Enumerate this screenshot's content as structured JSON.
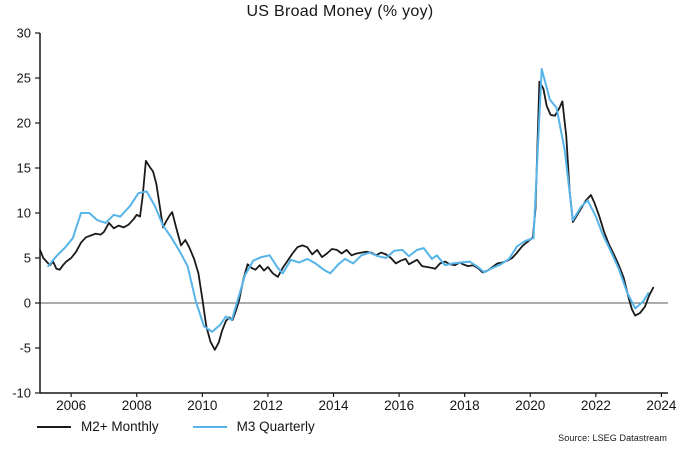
{
  "title": "US Broad Money (% yoy)",
  "source": "Source: LSEG Datastream",
  "legend": [
    {
      "label": "M2+ Monthly",
      "color": "#1a1a1a"
    },
    {
      "label": "M3 Quarterly",
      "color": "#56b4e9"
    }
  ],
  "colors": {
    "axis": "#161616",
    "zero_line": "#595959",
    "background": "#ffffff"
  },
  "chart_data": {
    "type": "line",
    "title": "US Broad Money (% yoy)",
    "xlabel": "",
    "ylabel": "",
    "xlim": [
      2005.05,
      2024.2
    ],
    "ylim": [
      -10,
      30
    ],
    "x_ticks": [
      2006,
      2008,
      2010,
      2012,
      2014,
      2016,
      2018,
      2020,
      2022,
      2024
    ],
    "y_ticks": [
      30,
      25,
      20,
      15,
      10,
      5,
      0,
      -5,
      -10
    ],
    "grid": false,
    "zero_line": true,
    "legend_position": "bottom-left",
    "series": [
      {
        "name": "M2+ Monthly",
        "color": "#1a1a1a",
        "width": 1.8,
        "points": [
          [
            2005.05,
            5.9
          ],
          [
            2005.15,
            5.0
          ],
          [
            2005.25,
            4.6
          ],
          [
            2005.35,
            4.2
          ],
          [
            2005.45,
            4.6
          ],
          [
            2005.55,
            3.8
          ],
          [
            2005.65,
            3.7
          ],
          [
            2005.75,
            4.2
          ],
          [
            2005.85,
            4.6
          ],
          [
            2006.0,
            5.0
          ],
          [
            2006.15,
            5.7
          ],
          [
            2006.3,
            6.7
          ],
          [
            2006.45,
            7.3
          ],
          [
            2006.6,
            7.5
          ],
          [
            2006.75,
            7.7
          ],
          [
            2006.9,
            7.6
          ],
          [
            2007.0,
            7.9
          ],
          [
            2007.15,
            8.9
          ],
          [
            2007.3,
            8.3
          ],
          [
            2007.45,
            8.6
          ],
          [
            2007.6,
            8.4
          ],
          [
            2007.75,
            8.7
          ],
          [
            2007.9,
            9.3
          ],
          [
            2008.0,
            9.8
          ],
          [
            2008.1,
            9.6
          ],
          [
            2008.18,
            11.8
          ],
          [
            2008.28,
            15.8
          ],
          [
            2008.4,
            15.1
          ],
          [
            2008.5,
            14.6
          ],
          [
            2008.6,
            13.2
          ],
          [
            2008.7,
            10.8
          ],
          [
            2008.8,
            8.4
          ],
          [
            2008.9,
            9.1
          ],
          [
            2009.0,
            9.7
          ],
          [
            2009.08,
            10.1
          ],
          [
            2009.2,
            8.4
          ],
          [
            2009.35,
            6.4
          ],
          [
            2009.48,
            7.0
          ],
          [
            2009.6,
            6.2
          ],
          [
            2009.75,
            4.9
          ],
          [
            2009.88,
            3.3
          ],
          [
            2010.0,
            0.5
          ],
          [
            2010.12,
            -2.6
          ],
          [
            2010.25,
            -4.3
          ],
          [
            2010.38,
            -5.2
          ],
          [
            2010.5,
            -4.4
          ],
          [
            2010.6,
            -3.1
          ],
          [
            2010.72,
            -2.0
          ],
          [
            2010.82,
            -1.6
          ],
          [
            2010.92,
            -1.9
          ],
          [
            2011.02,
            -0.9
          ],
          [
            2011.12,
            0.3
          ],
          [
            2011.25,
            2.6
          ],
          [
            2011.38,
            4.3
          ],
          [
            2011.5,
            3.9
          ],
          [
            2011.62,
            3.7
          ],
          [
            2011.75,
            4.2
          ],
          [
            2011.88,
            3.6
          ],
          [
            2012.0,
            4.0
          ],
          [
            2012.15,
            3.3
          ],
          [
            2012.3,
            2.9
          ],
          [
            2012.45,
            3.9
          ],
          [
            2012.6,
            4.7
          ],
          [
            2012.75,
            5.5
          ],
          [
            2012.9,
            6.2
          ],
          [
            2013.05,
            6.4
          ],
          [
            2013.2,
            6.2
          ],
          [
            2013.35,
            5.4
          ],
          [
            2013.5,
            5.9
          ],
          [
            2013.65,
            5.1
          ],
          [
            2013.8,
            5.5
          ],
          [
            2013.95,
            6.0
          ],
          [
            2014.1,
            5.9
          ],
          [
            2014.25,
            5.5
          ],
          [
            2014.4,
            5.9
          ],
          [
            2014.55,
            5.3
          ],
          [
            2014.7,
            5.5
          ],
          [
            2014.85,
            5.6
          ],
          [
            2015.0,
            5.7
          ],
          [
            2015.15,
            5.6
          ],
          [
            2015.3,
            5.3
          ],
          [
            2015.45,
            5.6
          ],
          [
            2015.6,
            5.4
          ],
          [
            2015.75,
            5.0
          ],
          [
            2015.9,
            4.4
          ],
          [
            2016.05,
            4.7
          ],
          [
            2016.2,
            4.9
          ],
          [
            2016.3,
            4.3
          ],
          [
            2016.45,
            4.6
          ],
          [
            2016.55,
            4.8
          ],
          [
            2016.7,
            4.1
          ],
          [
            2016.85,
            4.0
          ],
          [
            2017.0,
            3.9
          ],
          [
            2017.1,
            3.8
          ],
          [
            2017.25,
            4.4
          ],
          [
            2017.4,
            4.6
          ],
          [
            2017.55,
            4.3
          ],
          [
            2017.7,
            4.2
          ],
          [
            2017.85,
            4.5
          ],
          [
            2017.95,
            4.3
          ],
          [
            2018.1,
            4.1
          ],
          [
            2018.25,
            4.2
          ],
          [
            2018.4,
            3.9
          ],
          [
            2018.55,
            3.4
          ],
          [
            2018.7,
            3.6
          ],
          [
            2018.85,
            4.0
          ],
          [
            2019.0,
            4.4
          ],
          [
            2019.15,
            4.5
          ],
          [
            2019.3,
            4.7
          ],
          [
            2019.45,
            5.0
          ],
          [
            2019.6,
            5.6
          ],
          [
            2019.75,
            6.3
          ],
          [
            2019.85,
            6.6
          ],
          [
            2019.95,
            6.9
          ],
          [
            2020.08,
            7.3
          ],
          [
            2020.16,
            10.5
          ],
          [
            2020.28,
            24.6
          ],
          [
            2020.4,
            23.8
          ],
          [
            2020.5,
            21.9
          ],
          [
            2020.62,
            20.9
          ],
          [
            2020.75,
            20.8
          ],
          [
            2020.88,
            21.6
          ],
          [
            2020.98,
            22.4
          ],
          [
            2021.1,
            18.5
          ],
          [
            2021.2,
            12.5
          ],
          [
            2021.3,
            9.0
          ],
          [
            2021.42,
            9.7
          ],
          [
            2021.55,
            10.5
          ],
          [
            2021.7,
            11.4
          ],
          [
            2021.85,
            12.0
          ],
          [
            2021.95,
            11.2
          ],
          [
            2022.1,
            9.7
          ],
          [
            2022.25,
            7.9
          ],
          [
            2022.4,
            6.5
          ],
          [
            2022.55,
            5.4
          ],
          [
            2022.7,
            4.2
          ],
          [
            2022.85,
            2.8
          ],
          [
            2023.0,
            0.6
          ],
          [
            2023.1,
            -0.7
          ],
          [
            2023.2,
            -1.4
          ],
          [
            2023.35,
            -1.1
          ],
          [
            2023.5,
            -0.4
          ],
          [
            2023.62,
            0.8
          ],
          [
            2023.75,
            1.7
          ]
        ]
      },
      {
        "name": "M3 Quarterly",
        "color": "#56b4e9",
        "width": 2,
        "points": [
          [
            2005.3,
            4.1
          ],
          [
            2005.55,
            5.2
          ],
          [
            2005.8,
            6.1
          ],
          [
            2006.05,
            7.2
          ],
          [
            2006.3,
            10.0
          ],
          [
            2006.55,
            10.0
          ],
          [
            2006.8,
            9.2
          ],
          [
            2007.05,
            8.9
          ],
          [
            2007.3,
            9.8
          ],
          [
            2007.5,
            9.6
          ],
          [
            2007.8,
            10.8
          ],
          [
            2008.05,
            12.2
          ],
          [
            2008.3,
            12.4
          ],
          [
            2008.55,
            10.8
          ],
          [
            2008.8,
            8.6
          ],
          [
            2009.05,
            7.3
          ],
          [
            2009.3,
            5.8
          ],
          [
            2009.55,
            4.1
          ],
          [
            2009.8,
            0.2
          ],
          [
            2010.05,
            -2.6
          ],
          [
            2010.3,
            -3.2
          ],
          [
            2010.55,
            -2.4
          ],
          [
            2010.72,
            -1.5
          ],
          [
            2010.9,
            -1.9
          ],
          [
            2011.1,
            0.6
          ],
          [
            2011.3,
            3.1
          ],
          [
            2011.55,
            4.7
          ],
          [
            2011.8,
            5.1
          ],
          [
            2012.05,
            5.3
          ],
          [
            2012.3,
            3.9
          ],
          [
            2012.45,
            3.3
          ],
          [
            2012.7,
            4.8
          ],
          [
            2012.95,
            4.5
          ],
          [
            2013.2,
            4.9
          ],
          [
            2013.45,
            4.4
          ],
          [
            2013.7,
            3.7
          ],
          [
            2013.9,
            3.3
          ],
          [
            2014.15,
            4.3
          ],
          [
            2014.35,
            4.9
          ],
          [
            2014.6,
            4.4
          ],
          [
            2014.85,
            5.3
          ],
          [
            2015.1,
            5.6
          ],
          [
            2015.35,
            5.2
          ],
          [
            2015.6,
            5.0
          ],
          [
            2015.85,
            5.8
          ],
          [
            2016.1,
            5.9
          ],
          [
            2016.3,
            5.2
          ],
          [
            2016.55,
            5.9
          ],
          [
            2016.75,
            6.1
          ],
          [
            2017.0,
            4.9
          ],
          [
            2017.15,
            5.3
          ],
          [
            2017.4,
            4.2
          ],
          [
            2017.65,
            4.4
          ],
          [
            2017.9,
            4.5
          ],
          [
            2018.15,
            4.6
          ],
          [
            2018.4,
            4.0
          ],
          [
            2018.6,
            3.4
          ],
          [
            2018.85,
            3.9
          ],
          [
            2019.1,
            4.3
          ],
          [
            2019.35,
            4.9
          ],
          [
            2019.6,
            6.3
          ],
          [
            2019.85,
            6.9
          ],
          [
            2020.1,
            7.2
          ],
          [
            2020.35,
            26.0
          ],
          [
            2020.6,
            22.6
          ],
          [
            2020.8,
            21.7
          ],
          [
            2021.05,
            17.0
          ],
          [
            2021.3,
            9.2
          ],
          [
            2021.55,
            10.7
          ],
          [
            2021.75,
            11.4
          ],
          [
            2022.0,
            9.6
          ],
          [
            2022.2,
            7.7
          ],
          [
            2022.45,
            5.8
          ],
          [
            2022.7,
            3.8
          ],
          [
            2022.95,
            1.2
          ],
          [
            2023.2,
            -0.6
          ],
          [
            2023.45,
            0.2
          ],
          [
            2023.6,
            1.1
          ]
        ]
      }
    ]
  }
}
